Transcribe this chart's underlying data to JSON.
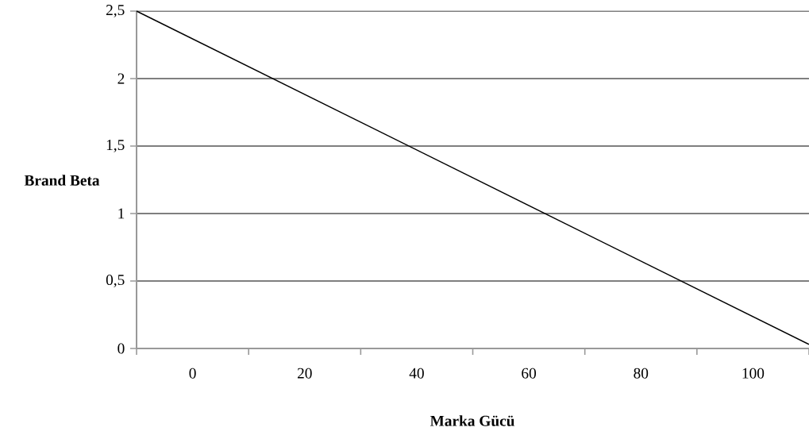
{
  "chart_data": {
    "type": "line",
    "xlabel": "Marka Gücü",
    "ylabel": "Brand Beta",
    "x": [
      -10,
      110
    ],
    "series": [
      {
        "color": "#000000",
        "values": [
          2.5,
          0.03
        ]
      }
    ],
    "xlim": [
      -10,
      110
    ],
    "xticks": [
      {
        "value": -10,
        "label": null
      },
      0,
      {
        "value": 10,
        "label": null
      },
      20,
      {
        "value": 30,
        "label": null
      },
      40,
      {
        "value": 50,
        "label": null
      },
      60,
      {
        "value": 70,
        "label": null
      },
      80,
      {
        "value": 90,
        "label": null
      },
      100,
      {
        "value": 110,
        "label": null
      }
    ],
    "ylim": [
      0,
      2.5
    ],
    "yticks": [
      0,
      {
        "value": 0.5,
        "label": "0,5"
      },
      1,
      {
        "value": 1.5,
        "label": "1,5"
      },
      2,
      {
        "value": 2.5,
        "label": "2,5"
      }
    ],
    "grid": "y",
    "marker": "none",
    "line_style": "solid"
  }
}
